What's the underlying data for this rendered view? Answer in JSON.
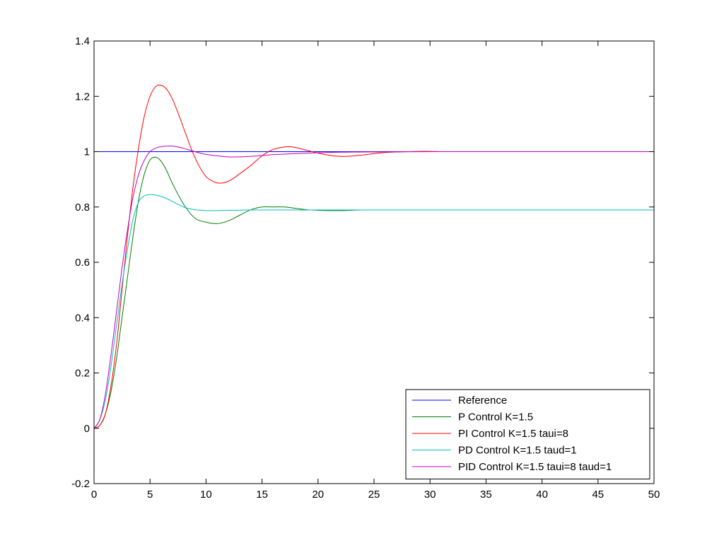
{
  "chart_data": {
    "type": "line",
    "title": "",
    "xlabel": "",
    "ylabel": "",
    "xlim": [
      0,
      50
    ],
    "ylim": [
      -0.2,
      1.4
    ],
    "x_ticks": [
      0,
      5,
      10,
      15,
      20,
      25,
      30,
      35,
      40,
      45,
      50
    ],
    "x_tick_labels": [
      "0",
      "5",
      "10",
      "15",
      "20",
      "25",
      "30",
      "35",
      "40",
      "45",
      "50"
    ],
    "y_ticks": [
      -0.2,
      0,
      0.2,
      0.4,
      0.6,
      0.8,
      1.0,
      1.2,
      1.4
    ],
    "y_tick_labels": [
      "-0.2",
      "0",
      "0.2",
      "0.4",
      "0.6",
      "0.8",
      "1",
      "1.2",
      "1.4"
    ],
    "grid": false,
    "legend_position": "bottom-right",
    "series": [
      {
        "name": "Reference",
        "color": "#0000ff",
        "x": [
          0,
          50
        ],
        "y": [
          1,
          1
        ]
      },
      {
        "name": "P Control K=1.5",
        "color": "#008000",
        "x": [
          0,
          0.5,
          1,
          1.5,
          2,
          2.5,
          3,
          3.5,
          4,
          4.5,
          5,
          5.5,
          6,
          6.5,
          7,
          8,
          9,
          10,
          11,
          12,
          13,
          14,
          15,
          16,
          17,
          18,
          19,
          20,
          21,
          22,
          23,
          24,
          24.6
        ],
        "y": [
          0,
          0.01,
          0.05,
          0.13,
          0.25,
          0.4,
          0.55,
          0.7,
          0.83,
          0.92,
          0.97,
          0.98,
          0.965,
          0.93,
          0.885,
          0.81,
          0.76,
          0.745,
          0.74,
          0.75,
          0.77,
          0.79,
          0.8,
          0.8,
          0.8,
          0.795,
          0.79,
          0.788,
          0.787,
          0.787,
          0.788,
          0.789,
          0.789
        ]
      },
      {
        "name": "PI Control K=1.5 taui=8",
        "color": "#ff0000",
        "x": [
          0,
          0.5,
          1,
          1.5,
          2,
          2.5,
          3,
          3.5,
          4,
          4.5,
          5,
          5.5,
          6,
          6.5,
          7,
          7.5,
          8,
          8.5,
          9,
          9.5,
          10,
          10.5,
          11,
          11.5,
          12,
          12.5,
          13,
          14,
          15,
          16,
          17,
          17.5,
          18,
          19,
          20,
          21,
          22,
          23,
          24,
          25,
          26,
          27,
          28,
          29,
          30,
          31,
          32,
          33,
          34,
          35,
          36.4
        ],
        "y": [
          0,
          0.01,
          0.05,
          0.15,
          0.3,
          0.5,
          0.7,
          0.88,
          1.02,
          1.13,
          1.2,
          1.235,
          1.24,
          1.225,
          1.19,
          1.14,
          1.085,
          1.03,
          0.98,
          0.94,
          0.91,
          0.895,
          0.887,
          0.887,
          0.893,
          0.905,
          0.92,
          0.95,
          0.985,
          1.008,
          1.017,
          1.018,
          1.015,
          1.005,
          0.995,
          0.987,
          0.983,
          0.984,
          0.988,
          0.993,
          0.997,
          0.999,
          1.0,
          1.001,
          1.001,
          1.0,
          1.0,
          1.0,
          1.0,
          1.0,
          1.0
        ]
      },
      {
        "name": "PD Control K=1.5 taud=1",
        "color": "#00bfbf",
        "x": [
          0,
          0.5,
          1,
          1.5,
          2,
          2.5,
          3,
          3.5,
          4,
          4.5,
          5,
          5.5,
          6,
          6.5,
          7,
          8,
          9,
          10,
          11,
          12,
          14,
          16,
          20,
          30,
          40,
          50
        ],
        "y": [
          0,
          0.03,
          0.1,
          0.22,
          0.37,
          0.52,
          0.65,
          0.76,
          0.82,
          0.84,
          0.845,
          0.843,
          0.838,
          0.83,
          0.82,
          0.8,
          0.79,
          0.787,
          0.787,
          0.788,
          0.789,
          0.789,
          0.789,
          0.789,
          0.789,
          0.789
        ]
      },
      {
        "name": "PID Control K=1.5 taui=8 taud=1",
        "color": "#bf00bf",
        "x": [
          0,
          0.5,
          1,
          1.5,
          2,
          2.5,
          3,
          3.5,
          4,
          4.5,
          5,
          5.5,
          6,
          6.5,
          7,
          7.5,
          8,
          9,
          10,
          11,
          12,
          13,
          14,
          15,
          16,
          18,
          20,
          22,
          25,
          30,
          40,
          50
        ],
        "y": [
          0,
          0.03,
          0.12,
          0.26,
          0.42,
          0.58,
          0.72,
          0.84,
          0.92,
          0.97,
          1.0,
          1.013,
          1.018,
          1.02,
          1.02,
          1.017,
          1.012,
          1.0,
          0.99,
          0.985,
          0.981,
          0.981,
          0.983,
          0.986,
          0.989,
          0.993,
          0.996,
          0.998,
          0.999,
          1.0,
          1.0,
          1.0
        ]
      }
    ]
  }
}
